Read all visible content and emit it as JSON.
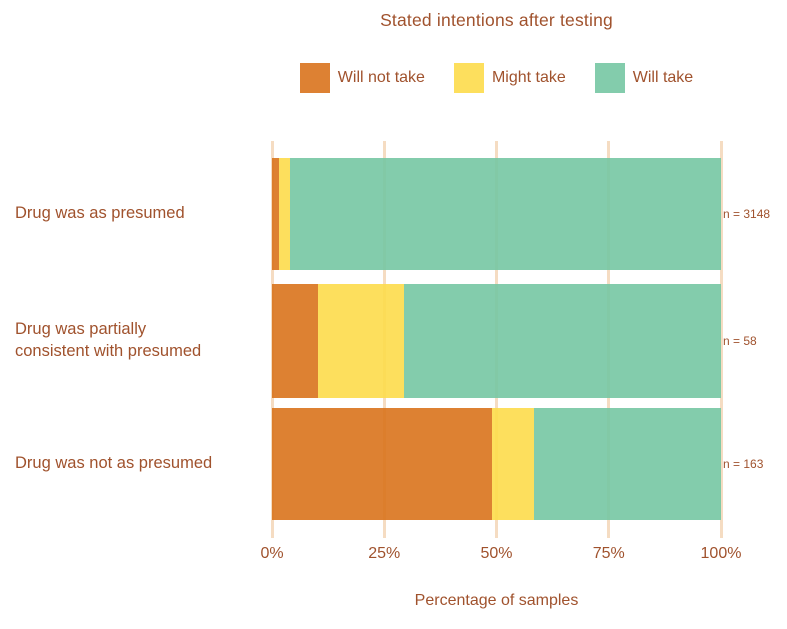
{
  "title": "Stated intentions after testing",
  "xlabel": "Percentage of samples",
  "legend": {
    "items": [
      {
        "label": "Will not take",
        "color": "#DD8133"
      },
      {
        "label": "Might take",
        "color": "#FDDF5D"
      },
      {
        "label": "Will take",
        "color": "#83CCAC"
      }
    ]
  },
  "categories": [
    {
      "label": "Drug was as presumed",
      "n_label": "n = 3148"
    },
    {
      "label": "Drug was partially\nconsistent with presumed",
      "n_label": "n = 58"
    },
    {
      "label": "Drug was not as presumed",
      "n_label": "n = 163"
    }
  ],
  "colors": {
    "text": "#A0522D",
    "grid": "#F5DCC2",
    "background": "#FFFFFF"
  },
  "chart_data": {
    "type": "bar",
    "orientation": "horizontal",
    "stacked": true,
    "title": "Stated intentions after testing",
    "xlabel": "Percentage of samples",
    "categories": [
      "Drug was as presumed",
      "Drug was partially consistent with presumed",
      "Drug was not as presumed"
    ],
    "annotations": [
      "n = 3148",
      "n = 58",
      "n = 163"
    ],
    "series": [
      {
        "name": "Will not take",
        "color": "#DD8133",
        "values": [
          1.6,
          10.3,
          49.1
        ]
      },
      {
        "name": "Might take",
        "color": "#FDDF5D",
        "values": [
          2.5,
          19.0,
          9.2
        ]
      },
      {
        "name": "Will take",
        "color": "#83CCAC",
        "values": [
          95.9,
          70.7,
          41.7
        ]
      }
    ],
    "xlim": [
      0,
      100
    ],
    "x_tick_labels": [
      "0%",
      "25%",
      "50%",
      "75%",
      "100%"
    ],
    "legend_position": "top",
    "grid": {
      "vertical_major": true,
      "color": "#F5DCC2"
    }
  }
}
